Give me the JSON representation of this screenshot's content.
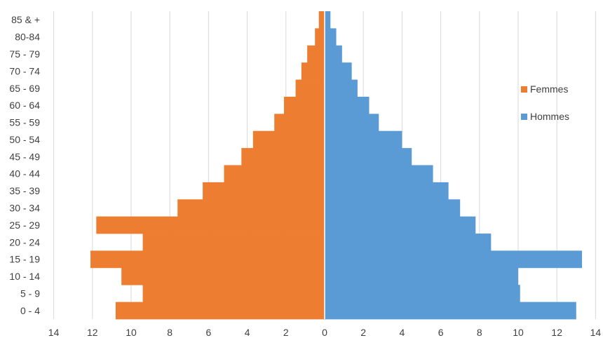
{
  "chart_data": {
    "type": "bar",
    "orientation": "horizontal",
    "subtype": "population-pyramid",
    "title": "",
    "xlabel": "",
    "ylabel": "",
    "categories": [
      "0 - 4",
      "5 - 9",
      "10 - 14",
      "15 - 19",
      "20 - 24",
      "25 - 29",
      "30 - 34",
      "35 - 39",
      "40 - 44",
      "45 - 49",
      "50 - 54",
      "55 - 59",
      "60 - 64",
      "65 - 69",
      "70 - 74",
      "75 - 79",
      "80-84",
      "85 & +"
    ],
    "series": [
      {
        "name": "Femmes",
        "side": "left",
        "color": "#ED7D31",
        "values": [
          10.8,
          9.4,
          10.5,
          12.1,
          9.4,
          11.8,
          7.6,
          6.3,
          5.2,
          4.3,
          3.7,
          2.6,
          2.1,
          1.5,
          1.2,
          0.9,
          0.5,
          0.3
        ]
      },
      {
        "name": "Hommes",
        "side": "right",
        "color": "#5B9BD5",
        "values": [
          13.0,
          10.1,
          10.0,
          13.3,
          8.6,
          7.8,
          7.0,
          6.4,
          5.6,
          4.5,
          4.0,
          2.8,
          2.3,
          1.7,
          1.4,
          0.9,
          0.6,
          0.3
        ]
      }
    ],
    "xlim": [
      -14,
      14
    ],
    "xticks": [
      "14",
      "12",
      "10",
      "8",
      "6",
      "4",
      "2",
      "0",
      "2",
      "4",
      "6",
      "8",
      "10",
      "12",
      "14"
    ],
    "grid": true,
    "legend_position": "right"
  }
}
